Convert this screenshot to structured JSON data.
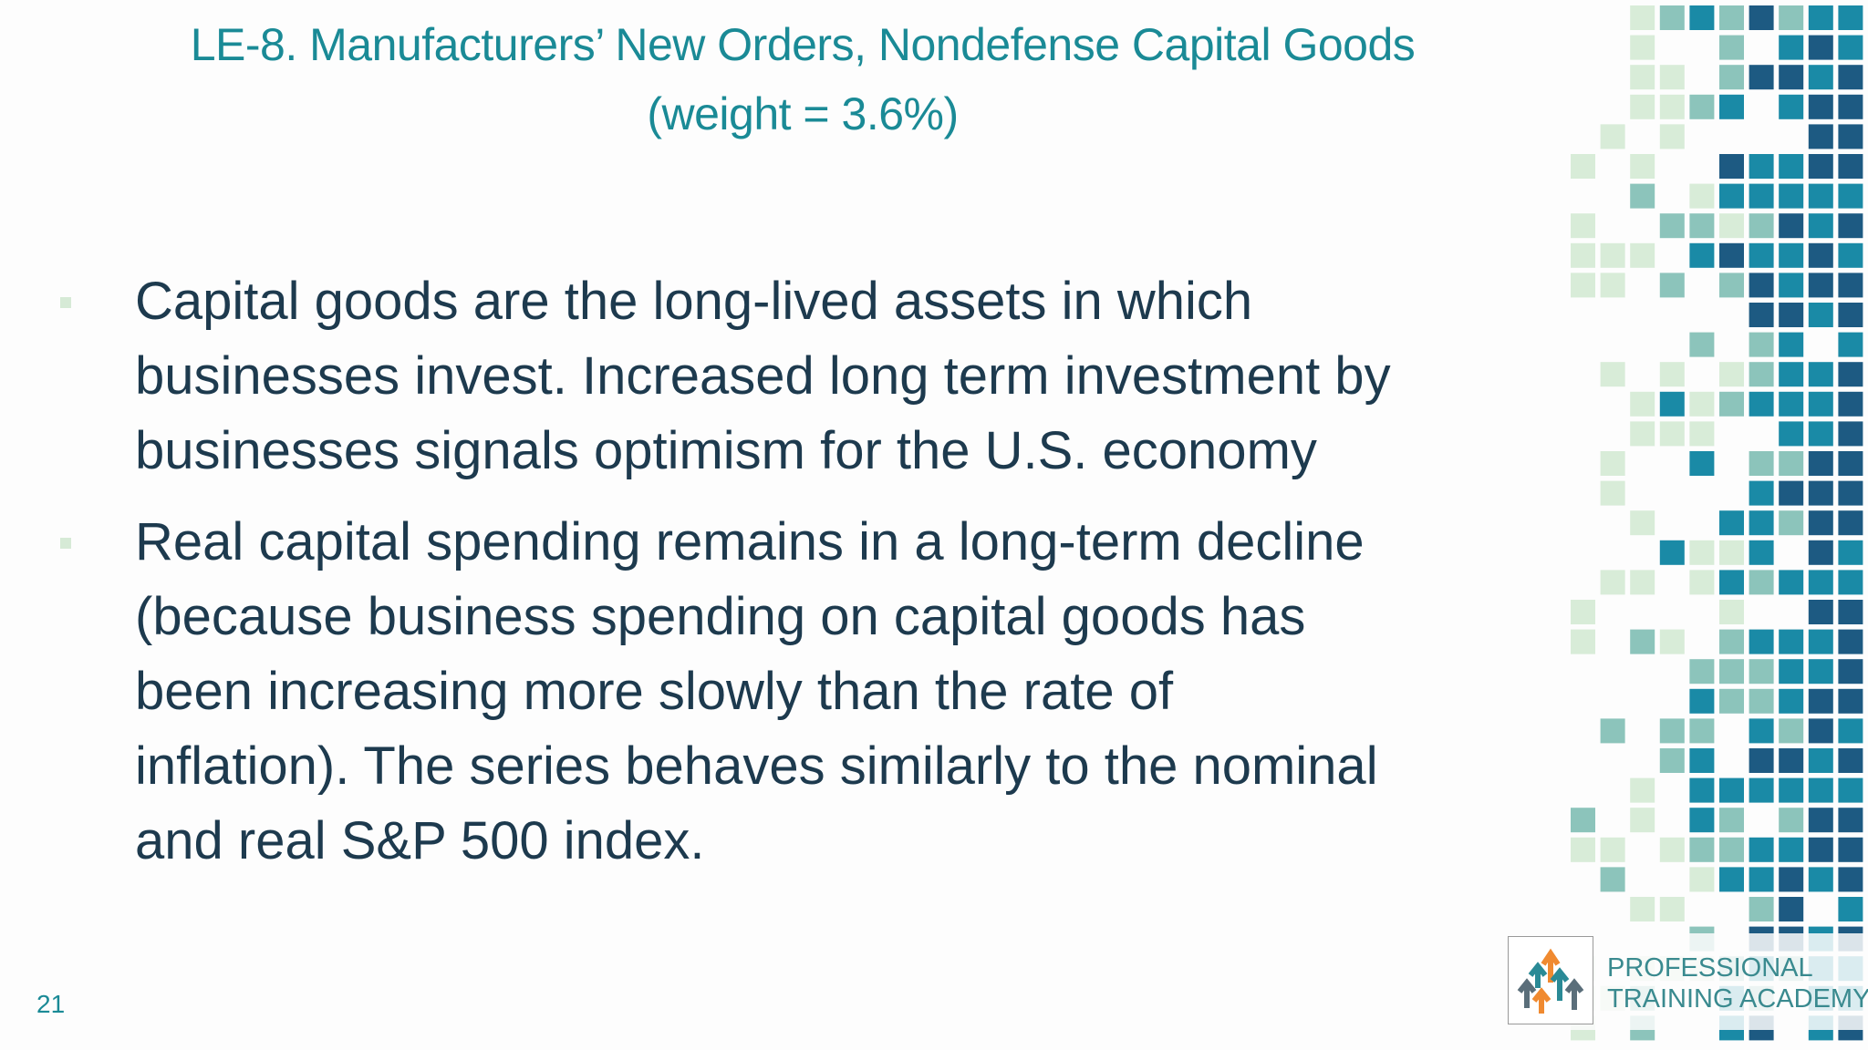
{
  "header": {
    "title": [
      "LE-8. Manufacturers’ New Orders, Nondefense Capital Goods",
      "(weight = 3.6%)"
    ]
  },
  "bullets": [
    [
      "Capital goods are the long-lived assets in which",
      "businesses invest. Increased long term investment by",
      "businesses signals optimism for the U.S. economy"
    ],
    [
      "Real capital spending remains in a long-term decline",
      "(because business spending on capital goods has",
      "been increasing more slowly than the rate of",
      "inflation). The series behaves similarly to the nominal",
      "and real S&P 500 index."
    ]
  ],
  "footer": {
    "page_number": "21",
    "logo": [
      "PROFESSIONAL",
      "TRAINING ACADEMY"
    ]
  }
}
